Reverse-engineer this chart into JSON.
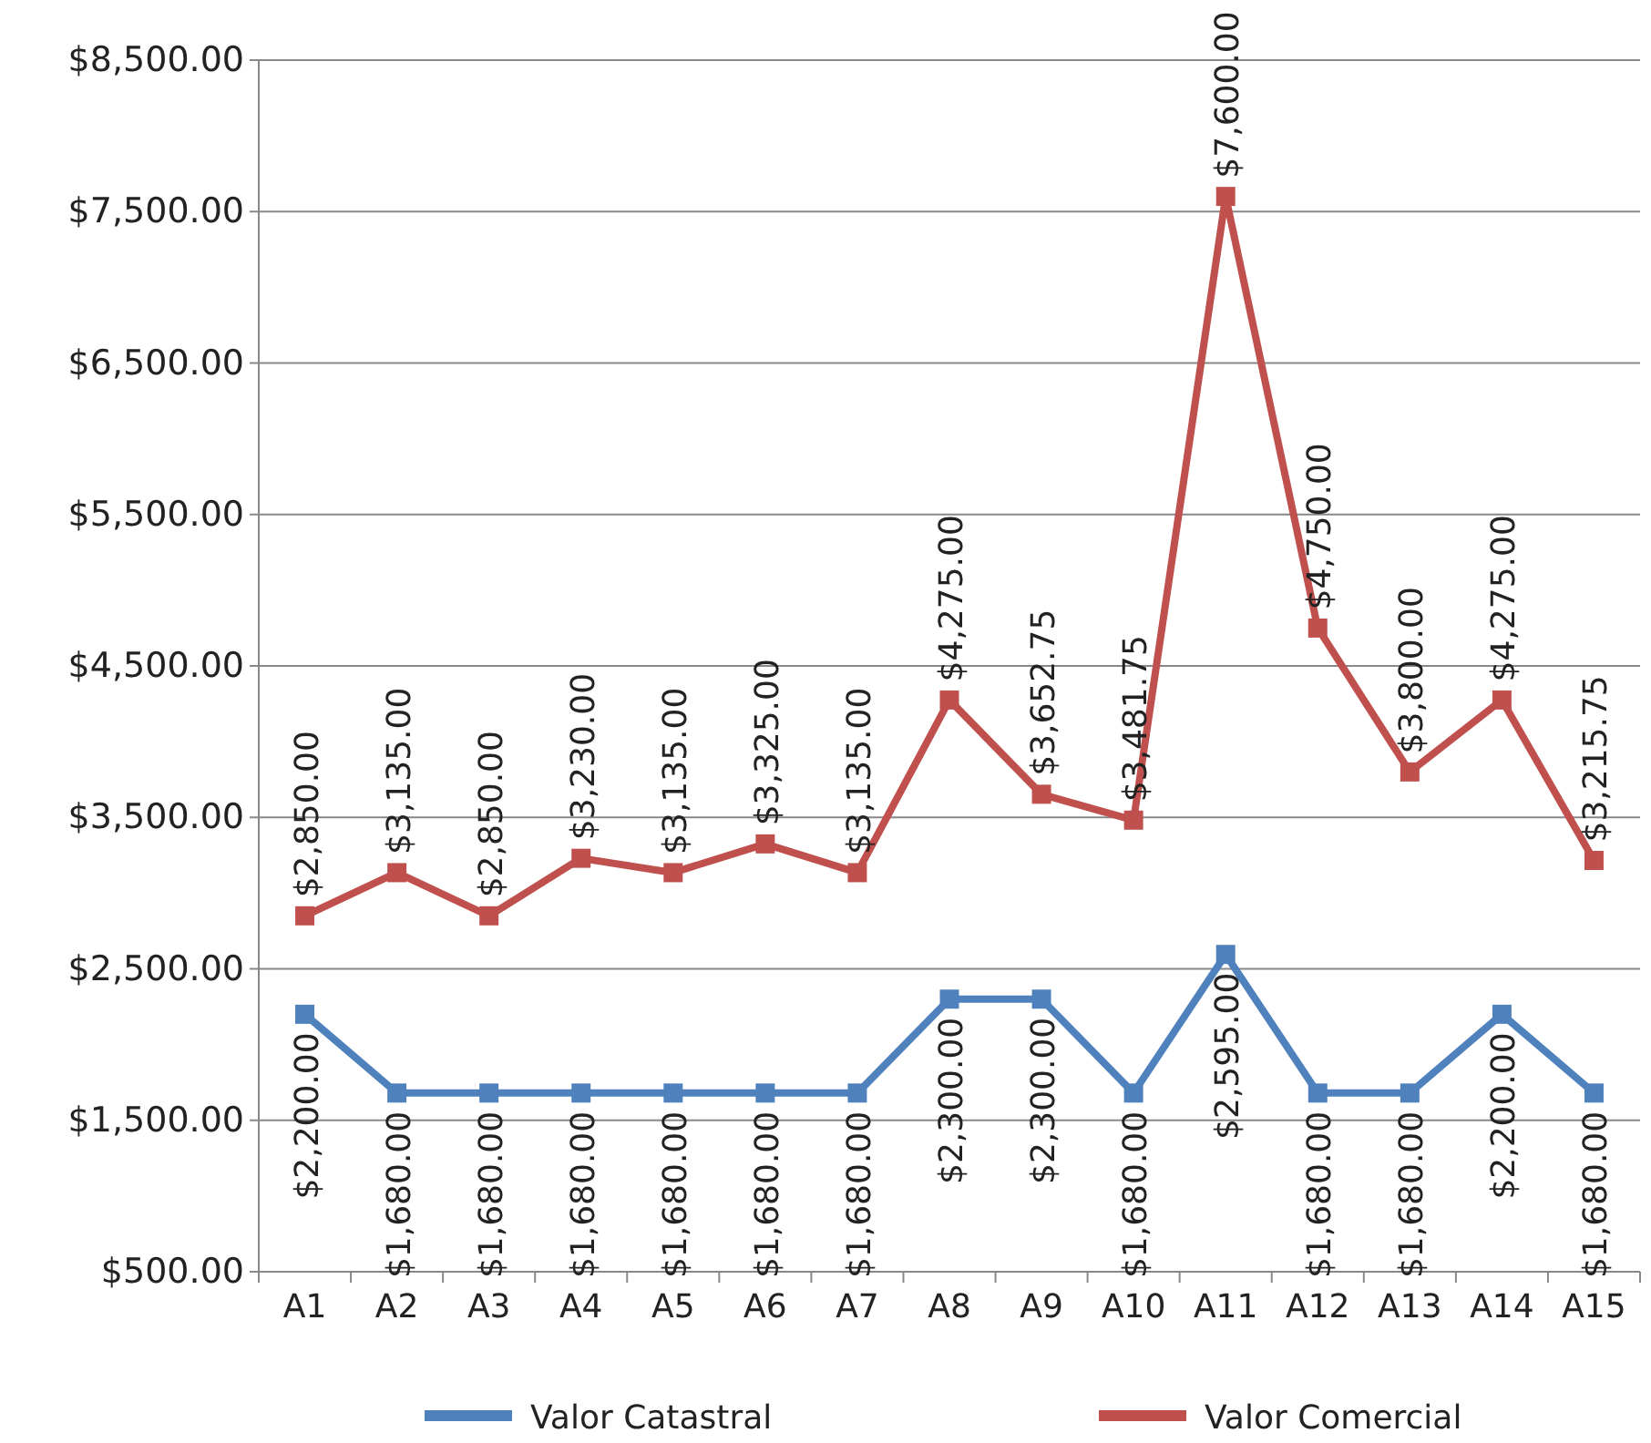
{
  "chart_data": {
    "type": "line",
    "categories": [
      "A1",
      "A2",
      "A3",
      "A4",
      "A5",
      "A6",
      "A7",
      "A8",
      "A9",
      "A10",
      "A11",
      "A12",
      "A13",
      "A14",
      "A15"
    ],
    "series": [
      {
        "name": "Valor Catastral",
        "color": "#4f81bd",
        "values": [
          2200,
          1680,
          1680,
          1680,
          1680,
          1680,
          1680,
          2300,
          2300,
          1680,
          2595,
          1680,
          1680,
          2200,
          1680
        ],
        "value_labels": [
          "$2,200.00",
          "$1,680.00",
          "$1,680.00",
          "$1,680.00",
          "$1,680.00",
          "$1,680.00",
          "$1,680.00",
          "$2,300.00",
          "$2,300.00",
          "$1,680.00",
          "$2,595.00",
          "$1,680.00",
          "$1,680.00",
          "$2,200.00",
          "$1,680.00"
        ]
      },
      {
        "name": "Valor Comercial",
        "color": "#c0504d",
        "values": [
          2850,
          3135,
          2850,
          3230,
          3135,
          3325,
          3135,
          4275,
          3652.75,
          3481.75,
          7600,
          4750,
          3800,
          4275,
          3215.75
        ],
        "value_labels": [
          "$2,850.00",
          "$3,135.00",
          "$2,850.00",
          "$3,230.00",
          "$3,135.00",
          "$3,325.00",
          "$3,135.00",
          "$4,275.00",
          "$3,652.75",
          "$3,481.75",
          "$7,600.00",
          "$4,750.00",
          "$3,800.00",
          "$4,275.00",
          "$3,215.75"
        ]
      }
    ],
    "ylim": [
      500,
      8500
    ],
    "yticks": [
      {
        "value": 500,
        "label": "$500.00"
      },
      {
        "value": 1500,
        "label": "$1,500.00"
      },
      {
        "value": 2500,
        "label": "$2,500.00"
      },
      {
        "value": 3500,
        "label": "$3,500.00"
      },
      {
        "value": 4500,
        "label": "$4,500.00"
      },
      {
        "value": 5500,
        "label": "$5,500.00"
      },
      {
        "value": 6500,
        "label": "$6,500.00"
      },
      {
        "value": 7500,
        "label": "$7,500.00"
      },
      {
        "value": 8500,
        "label": "$8,500.00"
      }
    ],
    "grid": "y",
    "legend": "bottom",
    "marker": "square",
    "line_style": "solid"
  }
}
